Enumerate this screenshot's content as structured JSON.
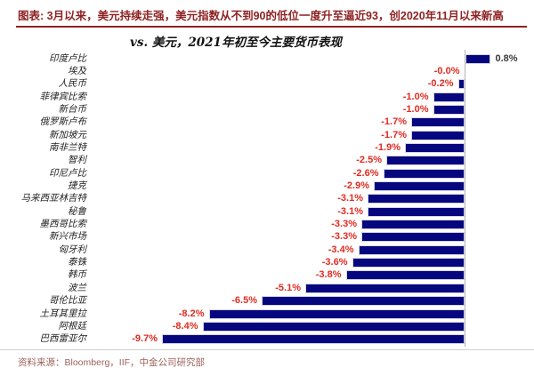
{
  "header": {
    "caption": "图表: 3月以来，美元持续走强，美元指数从不到90的低位一度升至逼近93，创2020年11月以来新高"
  },
  "chart_data": {
    "type": "bar",
    "orientation": "horizontal",
    "title": "vs. 美元，2021年初至今主要货币表现",
    "categories": [
      "印度卢比",
      "埃及",
      "人民币",
      "菲律宾比索",
      "新台币",
      "俄罗斯卢布",
      "新加坡元",
      "南非兰特",
      "智利",
      "印尼卢比",
      "捷克",
      "马来西亚林吉特",
      "秘鲁",
      "墨西哥比索",
      "新兴市场",
      "匈牙利",
      "泰铢",
      "韩币",
      "波兰",
      "哥伦比亚",
      "土耳其里拉",
      "阿根廷",
      "巴西雷亚尔"
    ],
    "values": [
      0.8,
      -0.0,
      -0.2,
      -1.0,
      -1.0,
      -1.7,
      -1.7,
      -1.9,
      -2.5,
      -2.6,
      -2.9,
      -3.1,
      -3.1,
      -3.3,
      -3.3,
      -3.4,
      -3.6,
      -3.8,
      -5.1,
      -6.5,
      -8.2,
      -8.4,
      -9.7
    ],
    "labels": [
      "0.8%",
      "-0.0%",
      "-0.2%",
      "-1.0%",
      "-1.0%",
      "-1.7%",
      "-1.7%",
      "-1.9%",
      "-2.5%",
      "-2.6%",
      "-2.9%",
      "-3.1%",
      "-3.1%",
      "-3.3%",
      "-3.3%",
      "-3.4%",
      "-3.6%",
      "-3.8%",
      "-5.1%",
      "-6.5%",
      "-8.2%",
      "-8.4%",
      "-9.7%"
    ],
    "xlim": [
      -10.5,
      2
    ],
    "grid": false,
    "legend": "none",
    "colors": {
      "bar": "#06067e",
      "negative_label": "#e02b22",
      "positive_label": "#3a3a3a",
      "caption": "#8f2222"
    }
  },
  "footer": {
    "source": "资料来源：Bloomberg，IIF，中金公司研究部"
  }
}
